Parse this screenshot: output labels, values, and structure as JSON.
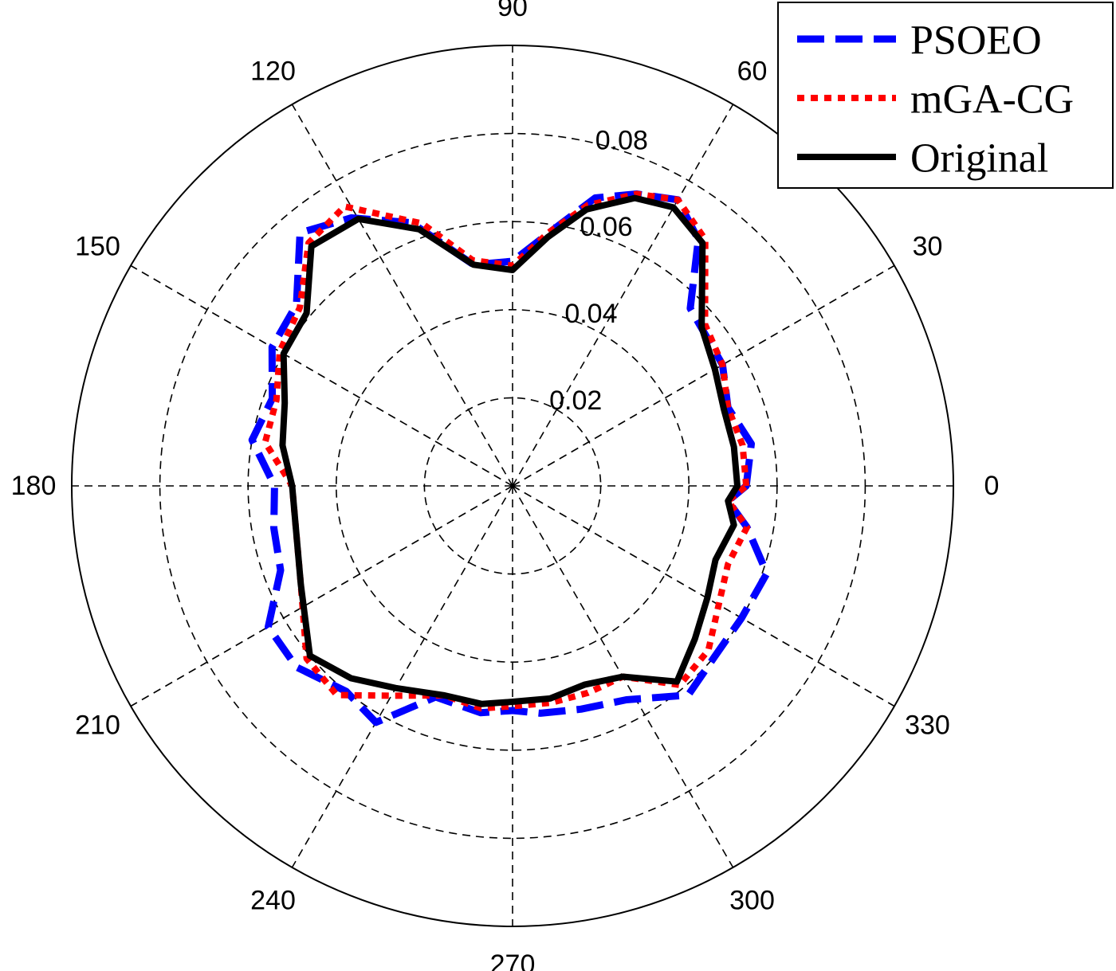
{
  "chart_data": {
    "type": "polar-line",
    "angle_unit": "degrees",
    "r_max": 0.1,
    "radial_ticks": [
      "0.02",
      "0.04",
      "0.06",
      "0.08"
    ],
    "radial_tick_values": [
      0.02,
      0.04,
      0.06,
      0.08
    ],
    "angle_ticks": [
      "0",
      "30",
      "60",
      "90",
      "120",
      "150",
      "180",
      "210",
      "240",
      "270",
      "300",
      "330"
    ],
    "angle_tick_values": [
      0,
      30,
      60,
      90,
      120,
      150,
      180,
      210,
      240,
      270,
      300,
      330
    ],
    "grid": true,
    "legend_position": "top-right",
    "series": [
      {
        "name": "PSOEO",
        "color": "#0000ff",
        "style": "dashed",
        "points": [
          [
            0,
            0.053
          ],
          [
            10,
            0.055
          ],
          [
            20,
            0.052
          ],
          [
            30,
            0.055
          ],
          [
            45,
            0.057
          ],
          [
            53,
            0.07
          ],
          [
            60,
            0.075
          ],
          [
            67,
            0.072
          ],
          [
            74,
            0.068
          ],
          [
            80,
            0.06
          ],
          [
            90,
            0.051
          ],
          [
            100,
            0.051
          ],
          [
            111,
            0.064
          ],
          [
            121,
            0.071
          ],
          [
            130,
            0.075
          ],
          [
            140,
            0.064
          ],
          [
            150,
            0.063
          ],
          [
            160,
            0.058
          ],
          [
            170,
            0.06
          ],
          [
            180,
            0.054
          ],
          [
            190,
            0.055
          ],
          [
            200,
            0.056
          ],
          [
            210,
            0.064
          ],
          [
            220,
            0.064
          ],
          [
            231,
            0.06
          ],
          [
            240,
            0.062
          ],
          [
            250,
            0.051
          ],
          [
            262,
            0.052
          ],
          [
            270,
            0.051
          ],
          [
            277,
            0.052
          ],
          [
            287,
            0.053
          ],
          [
            298,
            0.055
          ],
          [
            310,
            0.062
          ],
          [
            320,
            0.06
          ],
          [
            330,
            0.06
          ],
          [
            341,
            0.061
          ],
          [
            350,
            0.054
          ],
          [
            356,
            0.049
          ]
        ]
      },
      {
        "name": "mGA-CG",
        "color": "#ff0000",
        "style": "dotted",
        "points": [
          [
            0,
            0.053
          ],
          [
            10,
            0.053
          ],
          [
            20,
            0.052
          ],
          [
            30,
            0.055
          ],
          [
            40,
            0.057
          ],
          [
            52,
            0.071
          ],
          [
            60,
            0.075
          ],
          [
            67,
            0.072
          ],
          [
            75,
            0.066
          ],
          [
            82,
            0.058
          ],
          [
            90,
            0.05
          ],
          [
            100,
            0.052
          ],
          [
            109,
            0.063
          ],
          [
            121,
            0.074
          ],
          [
            130,
            0.072
          ],
          [
            140,
            0.063
          ],
          [
            150,
            0.061
          ],
          [
            160,
            0.057
          ],
          [
            170,
            0.057
          ],
          [
            180,
            0.05
          ],
          [
            190,
            0.05
          ],
          [
            205,
            0.053
          ],
          [
            220,
            0.061
          ],
          [
            230,
            0.062
          ],
          [
            240,
            0.055
          ],
          [
            252,
            0.05
          ],
          [
            262,
            0.051
          ],
          [
            270,
            0.05
          ],
          [
            280,
            0.05
          ],
          [
            290,
            0.05
          ],
          [
            300,
            0.05
          ],
          [
            310,
            0.059
          ],
          [
            320,
            0.058
          ],
          [
            330,
            0.054
          ],
          [
            340,
            0.052
          ],
          [
            350,
            0.054
          ],
          [
            356,
            0.049
          ]
        ]
      },
      {
        "name": "Original",
        "color": "#000000",
        "style": "solid",
        "points": [
          [
            0,
            0.051
          ],
          [
            10,
            0.051
          ],
          [
            20,
            0.051
          ],
          [
            30,
            0.053
          ],
          [
            40,
            0.056
          ],
          [
            52,
            0.07
          ],
          [
            60,
            0.073
          ],
          [
            67,
            0.071
          ],
          [
            75,
            0.065
          ],
          [
            82,
            0.057
          ],
          [
            90,
            0.049
          ],
          [
            100,
            0.051
          ],
          [
            110,
            0.062
          ],
          [
            120,
            0.07
          ],
          [
            130,
            0.071
          ],
          [
            140,
            0.061
          ],
          [
            150,
            0.06
          ],
          [
            160,
            0.055
          ],
          [
            170,
            0.053
          ],
          [
            180,
            0.05
          ],
          [
            190,
            0.05
          ],
          [
            205,
            0.053
          ],
          [
            220,
            0.06
          ],
          [
            230,
            0.057
          ],
          [
            240,
            0.053
          ],
          [
            252,
            0.05
          ],
          [
            262,
            0.05
          ],
          [
            270,
            0.049
          ],
          [
            280,
            0.049
          ],
          [
            290,
            0.048
          ],
          [
            300,
            0.05
          ],
          [
            310,
            0.058
          ],
          [
            320,
            0.054
          ],
          [
            330,
            0.051
          ],
          [
            340,
            0.049
          ],
          [
            350,
            0.051
          ],
          [
            356,
            0.049
          ]
        ]
      }
    ]
  }
}
